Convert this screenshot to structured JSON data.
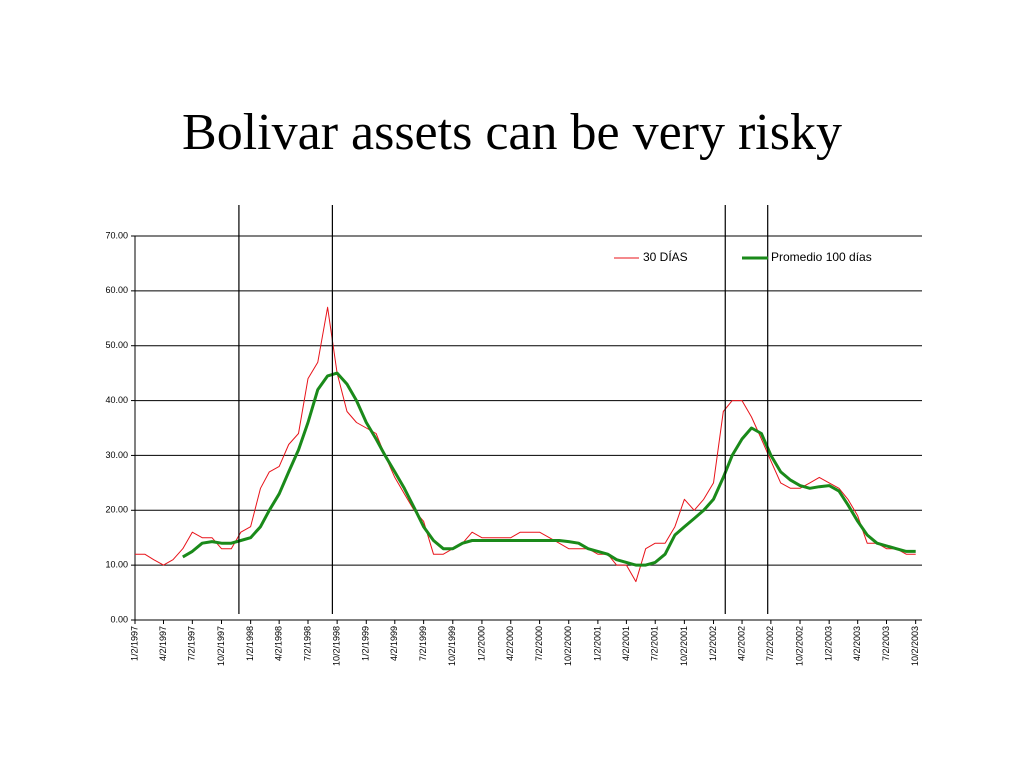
{
  "chart_data": {
    "type": "line",
    "title": "Bolivar assets can be very risky",
    "x": [
      "1/2/1997",
      "2/2/1997",
      "3/2/1997",
      "4/2/1997",
      "5/2/1997",
      "6/2/1997",
      "7/2/1997",
      "8/2/1997",
      "9/2/1997",
      "10/2/1997",
      "11/2/1997",
      "12/2/1997",
      "1/2/1998",
      "2/2/1998",
      "3/2/1998",
      "4/2/1998",
      "5/2/1998",
      "6/2/1998",
      "7/2/1998",
      "8/2/1998",
      "9/2/1998",
      "10/2/1998",
      "11/2/1998",
      "12/2/1998",
      "1/2/1999",
      "2/2/1999",
      "3/2/1999",
      "4/2/1999",
      "5/2/1999",
      "6/2/1999",
      "7/2/1999",
      "8/2/1999",
      "9/2/1999",
      "10/2/1999",
      "11/2/1999",
      "12/2/1999",
      "1/2/2000",
      "2/2/2000",
      "3/2/2000",
      "4/2/2000",
      "5/2/2000",
      "6/2/2000",
      "7/2/2000",
      "8/2/2000",
      "9/2/2000",
      "10/2/2000",
      "11/2/2000",
      "12/2/2000",
      "1/2/2001",
      "2/2/2001",
      "3/2/2001",
      "4/2/2001",
      "5/2/2001",
      "6/2/2001",
      "7/2/2001",
      "8/2/2001",
      "9/2/2001",
      "10/2/2001",
      "11/2/2001",
      "12/2/2001",
      "1/2/2002",
      "2/2/2002",
      "3/2/2002",
      "4/2/2002",
      "5/2/2002",
      "6/2/2002",
      "7/2/2002",
      "8/2/2002",
      "9/2/2002",
      "10/2/2002",
      "11/2/2002",
      "12/2/2002",
      "1/2/2003",
      "2/2/2003",
      "3/2/2003",
      "4/2/2003",
      "5/2/2003",
      "6/2/2003",
      "7/2/2003",
      "8/2/2003",
      "9/2/2003",
      "10/2/2003"
    ],
    "series": [
      {
        "name": "30 DÍAS",
        "color": "#e8131a",
        "values": [
          12,
          12,
          11,
          10,
          11,
          13,
          16,
          15,
          15,
          13,
          13,
          16,
          17,
          24,
          27,
          28,
          32,
          34,
          44,
          47,
          57,
          45,
          38,
          36,
          35,
          34,
          30,
          26,
          23,
          20,
          18,
          12,
          12,
          13,
          14,
          16,
          15,
          15,
          15,
          15,
          16,
          16,
          16,
          15,
          14,
          13,
          13,
          13,
          12,
          12,
          10,
          10,
          7,
          13,
          14,
          14,
          17,
          22,
          20,
          22,
          25,
          38,
          40,
          40,
          37,
          33,
          29,
          25,
          24,
          24,
          25,
          26,
          25,
          24,
          22,
          19,
          14,
          14,
          13,
          13,
          12,
          12
        ]
      },
      {
        "name": "Promedio 100 días",
        "color": "#1a8a1a",
        "values": [
          null,
          null,
          null,
          null,
          null,
          11.5,
          12.5,
          14,
          14.3,
          14,
          14,
          14.5,
          15,
          17,
          20,
          23,
          27,
          31,
          36,
          42,
          44.5,
          45,
          43,
          40,
          36,
          33,
          30,
          27,
          24,
          20.5,
          17,
          14.5,
          13,
          13,
          14,
          14.5,
          14.5,
          14.5,
          14.5,
          14.5,
          14.5,
          14.5,
          14.5,
          14.5,
          14.5,
          14.3,
          14,
          13,
          12.5,
          12,
          11,
          10.5,
          10,
          10,
          10.5,
          12,
          15.5,
          17,
          18.5,
          20,
          22,
          26,
          30,
          33,
          35,
          34,
          30,
          27,
          25.5,
          24.5,
          24,
          24.3,
          24.5,
          23.5,
          21,
          18,
          15.5,
          14,
          13.5,
          13,
          12.5,
          12.5
        ]
      }
    ],
    "xlim": [
      "1/2/1997",
      "10/22/2003"
    ],
    "xticks": [
      "1/2/1997",
      "4/2/1997",
      "7/2/1997",
      "10/2/1997",
      "1/2/1998",
      "4/2/1998",
      "7/2/1998",
      "10/2/1998",
      "1/2/1999",
      "4/2/1999",
      "7/2/1999",
      "10/2/1999",
      "1/2/2000",
      "4/2/2000",
      "7/2/2000",
      "10/2/2000",
      "1/2/2001",
      "4/2/2001",
      "7/2/2001",
      "10/2/2001",
      "1/2/2002",
      "4/2/2002",
      "7/2/2002",
      "10/2/2002",
      "1/2/2003",
      "4/2/2003",
      "7/2/2003",
      "10/2/2003"
    ],
    "ylim": [
      0,
      70
    ],
    "yticks": [
      {
        "value": 0,
        "label": "0.00"
      },
      {
        "value": 10,
        "label": "10.00"
      },
      {
        "value": 20,
        "label": "20.00"
      },
      {
        "value": 30,
        "label": "30.00"
      },
      {
        "value": 40,
        "label": "40.00"
      },
      {
        "value": 50,
        "label": "50.00"
      },
      {
        "value": 60,
        "label": "60.00"
      },
      {
        "value": 70,
        "label": "70.00"
      }
    ],
    "vlines": [
      "11/26/1997",
      "9/17/1998",
      "2/8/2002",
      "6/22/2002"
    ],
    "grid": true,
    "legend": "top-right"
  }
}
